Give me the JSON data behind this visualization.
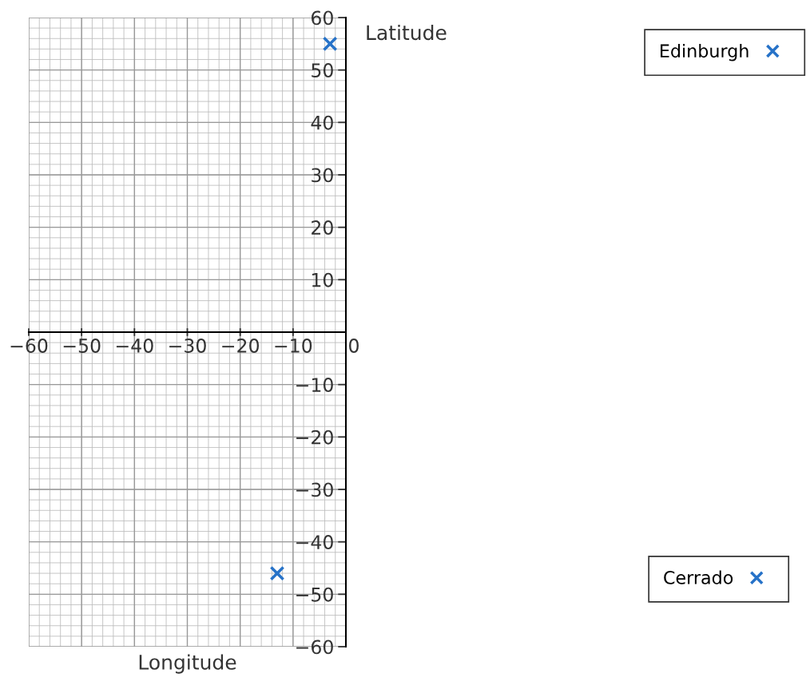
{
  "chart_data": {
    "type": "scatter",
    "xlabel": "Longitude",
    "ylabel": "Latitude",
    "xlim": [
      -60,
      0
    ],
    "ylim": [
      -60,
      60
    ],
    "xticks": [
      -60,
      -50,
      -40,
      -30,
      -20,
      -10,
      0
    ],
    "yticks": [
      -60,
      -50,
      -40,
      -30,
      -20,
      -10,
      10,
      20,
      30,
      40,
      50,
      60
    ],
    "grid": true,
    "marker": "cross",
    "legend": "right",
    "series": [
      {
        "name": "Edinburgh",
        "color": "#2672c8",
        "x": [
          -3
        ],
        "values": [
          55
        ]
      },
      {
        "name": "Cerrado",
        "color": "#2672c8",
        "x": [
          -13
        ],
        "values": [
          -46
        ]
      }
    ]
  }
}
